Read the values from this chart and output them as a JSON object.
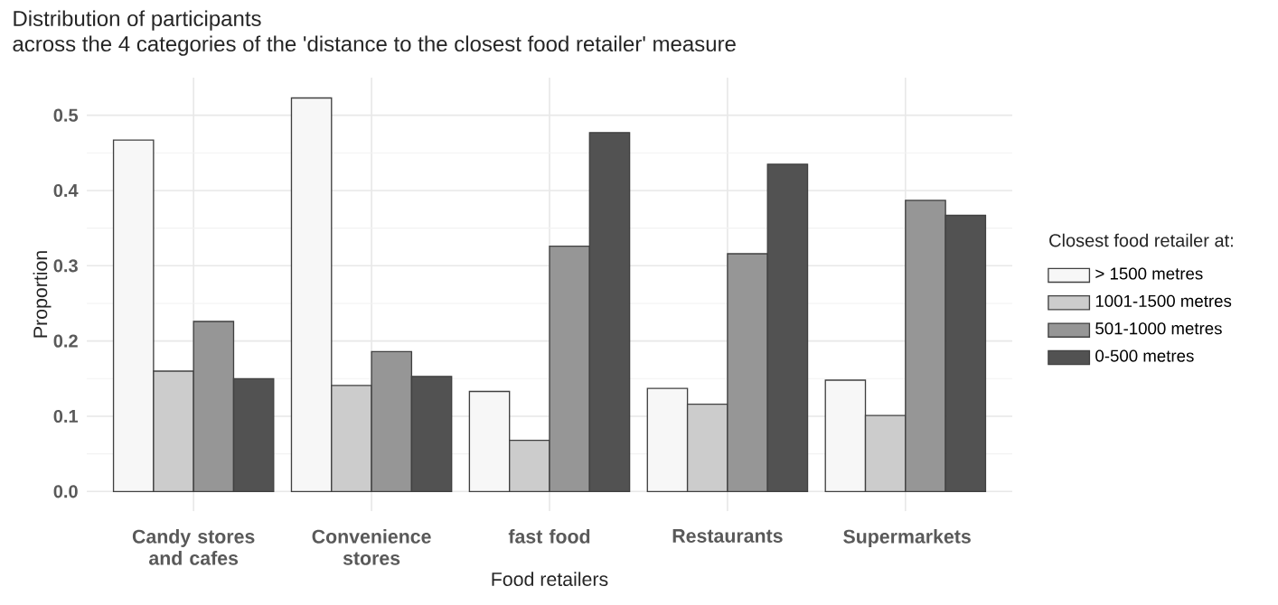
{
  "chart_data": {
    "type": "bar",
    "title": "Distribution of participants",
    "subtitle": "across the 4 categories of the 'distance to the closest food retailer' measure",
    "xlabel": "Food retailers",
    "ylabel": "Proportion",
    "legend_title": "Closest food retailer at:",
    "legend": "right",
    "grid": true,
    "categories": [
      "Candy stores and cafes",
      "Convenience stores",
      "fast food",
      "Restaurants",
      "Supermarkets"
    ],
    "ylim": [
      -0.026,
      0.55
    ],
    "yticks": [
      {
        "value": 0,
        "label": "0.0"
      },
      0.1,
      0.2,
      0.3,
      0.4,
      0.5
    ],
    "series": [
      {
        "name": "> 1500 metres",
        "color": "#f7f7f7",
        "values": [
          0.467,
          0.523,
          0.133,
          0.137,
          0.148
        ]
      },
      {
        "name": "1001-1500 metres",
        "color": "#cccccc",
        "values": [
          0.16,
          0.141,
          0.068,
          0.116,
          0.101
        ]
      },
      {
        "name": "501-1000 metres",
        "color": "#969696",
        "values": [
          0.226,
          0.186,
          0.326,
          0.316,
          0.387
        ]
      },
      {
        "name": "0-500 metres",
        "color": "#525252",
        "values": [
          0.15,
          0.153,
          0.477,
          0.435,
          0.367
        ]
      }
    ]
  }
}
